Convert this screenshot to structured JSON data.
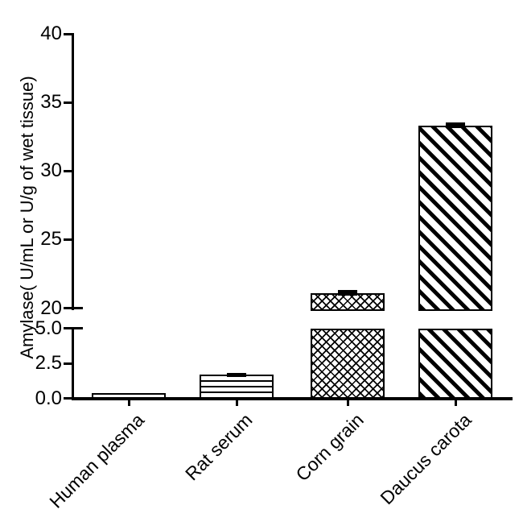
{
  "chart_data": {
    "type": "bar",
    "title": "",
    "ylabel": "Amylase( U/mL or U/g of wet tissue)",
    "xlabel": "",
    "categories": [
      "Human plasma",
      "Rat serum",
      "Corn grain",
      "Daucus carota"
    ],
    "values": [
      0.4,
      1.7,
      21.1,
      33.3
    ],
    "error_plus": [
      0,
      0.1,
      0.2,
      0.25
    ],
    "bar_fill_patterns": [
      "plain",
      "horizontal-lines",
      "diagonal-crosshatch",
      "diagonal-lines"
    ],
    "y_axis": {
      "broken": true,
      "lower_segment": {
        "range": [
          0,
          5
        ],
        "ticks": [
          0,
          2.5,
          5
        ],
        "tick_labels": [
          "0.0",
          "2.5",
          "5.0"
        ]
      },
      "upper_segment": {
        "range": [
          20,
          40
        ],
        "ticks": [
          20,
          25,
          30,
          35,
          40
        ],
        "tick_labels": [
          "20",
          "25",
          "30",
          "35",
          "40"
        ]
      }
    },
    "grid": false,
    "legend": false,
    "colors": {
      "bar_outline": "#000000",
      "background": "#ffffff",
      "text": "#000000"
    }
  }
}
